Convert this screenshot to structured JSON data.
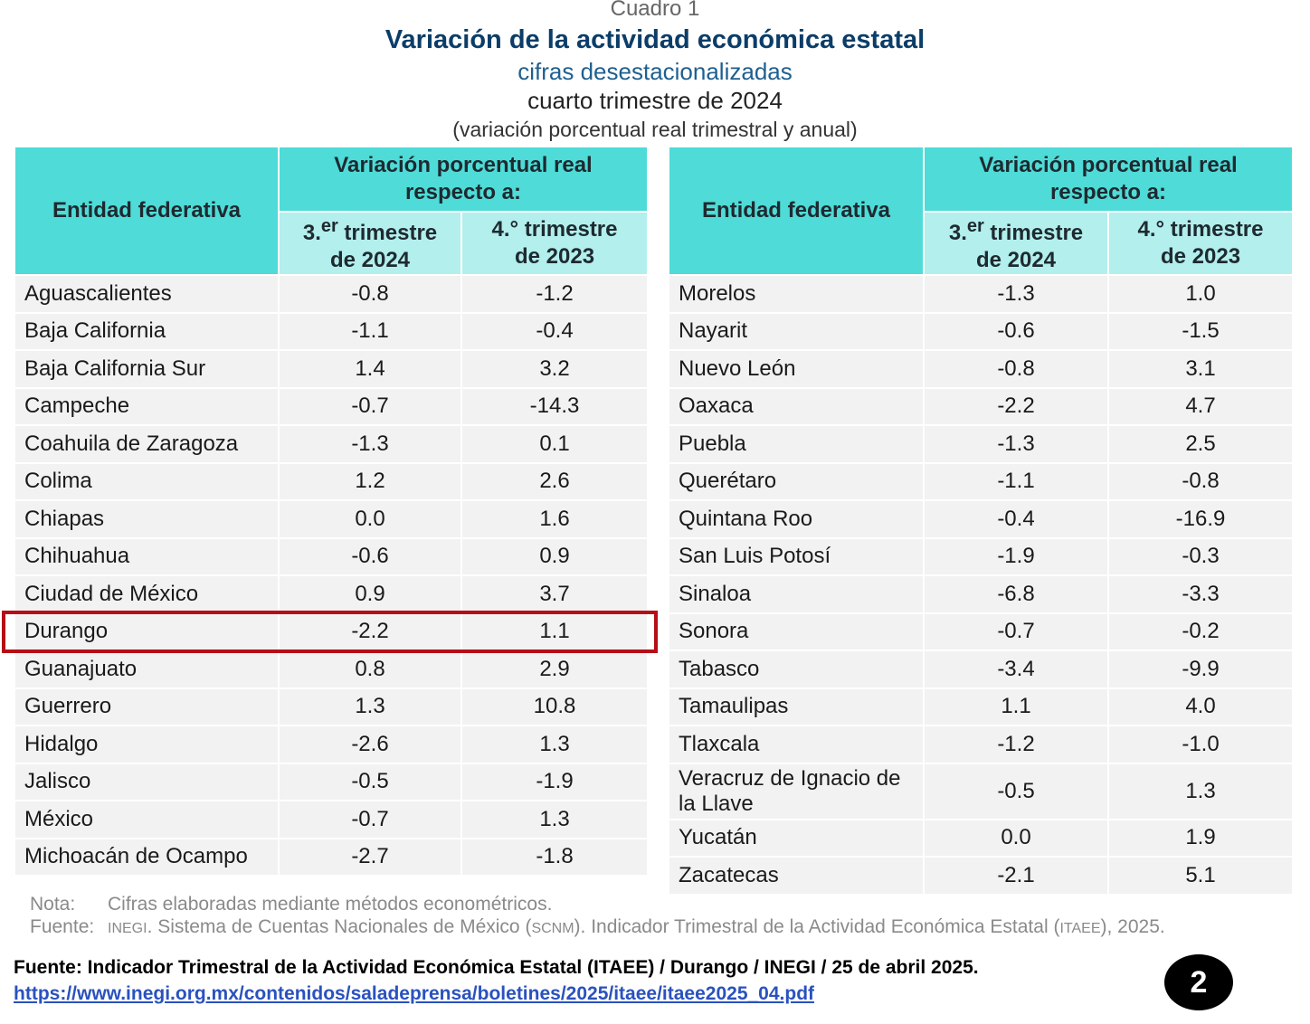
{
  "header": {
    "cuadro": "Cuadro 1",
    "title": "Variación de la actividad económica estatal",
    "subtitle1": "cifras desestacionalizadas",
    "subtitle2": "cuarto trimestre de 2024",
    "subtitle3": "(variación porcentual real trimestral y anual)"
  },
  "columns": {
    "entity": "Entidad federativa",
    "group_line1": "Variación porcentual real",
    "group_line2": "respecto a:",
    "col1_prefix": "3.",
    "col1_sup": "er",
    "col1_rest": " trimestre",
    "col1_line2": "de 2024",
    "col2_line1": "4.° trimestre",
    "col2_line2": "de 2023"
  },
  "left_rows": [
    {
      "name": "Aguascalientes",
      "q3": "-0.8",
      "q4": "-1.2"
    },
    {
      "name": "Baja California",
      "q3": "-1.1",
      "q4": "-0.4"
    },
    {
      "name": "Baja California Sur",
      "q3": "1.4",
      "q4": "3.2"
    },
    {
      "name": "Campeche",
      "q3": "-0.7",
      "q4": "-14.3"
    },
    {
      "name": "Coahuila de Zaragoza",
      "q3": "-1.3",
      "q4": "0.1"
    },
    {
      "name": "Colima",
      "q3": "1.2",
      "q4": "2.6"
    },
    {
      "name": "Chiapas",
      "q3": "0.0",
      "q4": "1.6"
    },
    {
      "name": "Chihuahua",
      "q3": "-0.6",
      "q4": "0.9"
    },
    {
      "name": "Ciudad de México",
      "q3": "0.9",
      "q4": "3.7"
    },
    {
      "name": "Durango",
      "q3": "-2.2",
      "q4": "1.1"
    },
    {
      "name": "Guanajuato",
      "q3": "0.8",
      "q4": "2.9"
    },
    {
      "name": "Guerrero",
      "q3": "1.3",
      "q4": "10.8"
    },
    {
      "name": "Hidalgo",
      "q3": "-2.6",
      "q4": "1.3"
    },
    {
      "name": "Jalisco",
      "q3": "-0.5",
      "q4": "-1.9"
    },
    {
      "name": "México",
      "q3": "-0.7",
      "q4": "1.3"
    },
    {
      "name": "Michoacán de Ocampo",
      "q3": "-2.7",
      "q4": "-1.8"
    }
  ],
  "right_rows": [
    {
      "name": "Morelos",
      "q3": "-1.3",
      "q4": "1.0"
    },
    {
      "name": "Nayarit",
      "q3": "-0.6",
      "q4": "-1.5"
    },
    {
      "name": "Nuevo León",
      "q3": "-0.8",
      "q4": "3.1"
    },
    {
      "name": "Oaxaca",
      "q3": "-2.2",
      "q4": "4.7"
    },
    {
      "name": "Puebla",
      "q3": "-1.3",
      "q4": "2.5"
    },
    {
      "name": "Querétaro",
      "q3": "-1.1",
      "q4": "-0.8"
    },
    {
      "name": "Quintana Roo",
      "q3": "-0.4",
      "q4": "-16.9"
    },
    {
      "name": "San Luis Potosí",
      "q3": "-1.9",
      "q4": "-0.3"
    },
    {
      "name": "Sinaloa",
      "q3": "-6.8",
      "q4": "-3.3"
    },
    {
      "name": "Sonora",
      "q3": "-0.7",
      "q4": "-0.2"
    },
    {
      "name": "Tabasco",
      "q3": "-3.4",
      "q4": "-9.9"
    },
    {
      "name": "Tamaulipas",
      "q3": "1.1",
      "q4": "4.0"
    },
    {
      "name": "Tlaxcala",
      "q3": "-1.2",
      "q4": "-1.0"
    },
    {
      "name": "Veracruz de Ignacio de la Llave",
      "q3": "-0.5",
      "q4": "1.3"
    },
    {
      "name": "Yucatán",
      "q3": "0.0",
      "q4": "1.9"
    },
    {
      "name": "Zacatecas",
      "q3": "-2.1",
      "q4": "5.1"
    }
  ],
  "highlighted_row": "Durango",
  "highlight_color": "#b50e16",
  "header_color": "#4fdbd7",
  "subheader_color": "#b2efed",
  "notes": {
    "nota_label": "Nota:",
    "nota_text": "Cifras elaboradas mediante métodos econométricos.",
    "fuente_label": "Fuente:",
    "fuente_inegi": "INEGI",
    "fuente_text1": ". Sistema de Cuentas Nacionales de México (",
    "fuente_scnm": "SCNM",
    "fuente_text2": "). Indicador Trimestral de la Actividad Económica Estatal (",
    "fuente_itaee": "ITAEE",
    "fuente_text3": "), 2025."
  },
  "footer": {
    "source": "Fuente: Indicador Trimestral de la Actividad Económica Estatal (ITAEE) / Durango / INEGI / 25 de abril 2025.",
    "link": "https://www.inegi.org.mx/contenidos/saladeprensa/boletines/2025/itaee/itaee2025_04.pdf",
    "page_number": "2"
  }
}
